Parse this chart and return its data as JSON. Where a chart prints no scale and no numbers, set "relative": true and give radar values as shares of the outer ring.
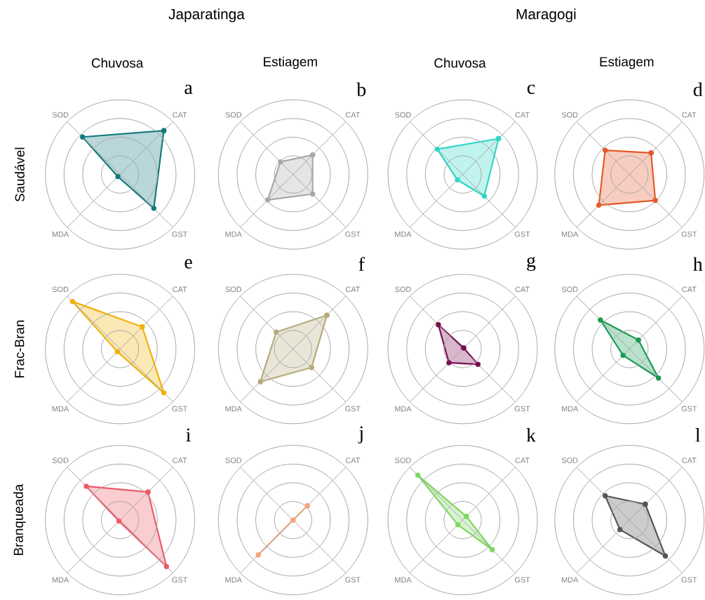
{
  "chart_data": [
    {
      "type": "radar",
      "title": "a",
      "subtitle": "Chuvosa",
      "ylabel": "Saudável",
      "annotations": [
        "Japaratinga"
      ],
      "categories": [
        "CAT",
        "GST",
        "MDA",
        "SOD"
      ],
      "relative": true,
      "marker": "circle",
      "series": [
        {
          "color": "#167a7e",
          "values": [
            0.83,
            0.64,
            0.04,
            0.71
          ]
        }
      ]
    },
    {
      "type": "radar",
      "title": "b",
      "subtitle": "Estiagem",
      "categories": [
        "CAT",
        "GST",
        "MDA",
        "SOD"
      ],
      "relative": true,
      "marker": "circle",
      "series": [
        {
          "color": "#a8a8a8",
          "values": [
            0.37,
            0.37,
            0.48,
            0.24
          ]
        }
      ]
    },
    {
      "type": "radar",
      "title": "c",
      "subtitle": "Chuvosa",
      "annotations": [
        "Maragogi"
      ],
      "categories": [
        "CAT",
        "GST",
        "MDA",
        "SOD"
      ],
      "relative": true,
      "marker": "circle",
      "series": [
        {
          "color": "#2fd6c6",
          "values": [
            0.68,
            0.41,
            0.1,
            0.48
          ]
        }
      ]
    },
    {
      "type": "radar",
      "title": "d",
      "subtitle": "Estiagem",
      "categories": [
        "CAT",
        "GST",
        "MDA",
        "SOD"
      ],
      "relative": true,
      "marker": "circle",
      "series": [
        {
          "color": "#e45a2a",
          "values": [
            0.41,
            0.49,
            0.58,
            0.46
          ]
        }
      ]
    },
    {
      "type": "radar",
      "title": "e",
      "ylabel": "Frac-Bran",
      "categories": [
        "CAT",
        "GST",
        "MDA",
        "SOD"
      ],
      "relative": true,
      "marker": "circle",
      "series": [
        {
          "color": "#f0b20a",
          "values": [
            0.42,
            0.83,
            0.05,
            0.9
          ]
        }
      ]
    },
    {
      "type": "radar",
      "title": "f",
      "categories": [
        "CAT",
        "GST",
        "MDA",
        "SOD"
      ],
      "relative": true,
      "marker": "circle",
      "series": [
        {
          "color": "#b5ab7b",
          "values": [
            0.64,
            0.35,
            0.62,
            0.32
          ]
        }
      ]
    },
    {
      "type": "radar",
      "title": "g",
      "categories": [
        "CAT",
        "GST",
        "MDA",
        "SOD"
      ],
      "relative": true,
      "marker": "circle",
      "series": [
        {
          "color": "#7a0f52",
          "values": [
            0.02,
            0.29,
            0.26,
            0.46
          ]
        }
      ]
    },
    {
      "type": "radar",
      "title": "h",
      "categories": [
        "CAT",
        "GST",
        "MDA",
        "SOD"
      ],
      "relative": true,
      "marker": "circle",
      "series": [
        {
          "color": "#1a9a52",
          "values": [
            0.17,
            0.55,
            0.12,
            0.55
          ]
        }
      ]
    },
    {
      "type": "radar",
      "title": "i",
      "ylabel": "Branqueada",
      "categories": [
        "CAT",
        "GST",
        "MDA",
        "SOD"
      ],
      "relative": true,
      "marker": "circle",
      "series": [
        {
          "color": "#ee5a66",
          "values": [
            0.53,
            0.88,
            0.02,
            0.64
          ]
        }
      ]
    },
    {
      "type": "radar",
      "title": "j",
      "categories": [
        "CAT",
        "GST",
        "MDA",
        "SOD"
      ],
      "relative": true,
      "marker": "circle",
      "series": [
        {
          "color": "#f5a57a",
          "values": [
            0.27,
            0,
            0.66,
            0
          ]
        }
      ]
    },
    {
      "type": "radar",
      "title": "k",
      "categories": [
        "CAT",
        "GST",
        "MDA",
        "SOD"
      ],
      "relative": true,
      "marker": "circle",
      "series": [
        {
          "color": "#7ed860",
          "values": [
            0.07,
            0.56,
            0.09,
            0.85
          ]
        }
      ]
    },
    {
      "type": "radar",
      "title": "l",
      "categories": [
        "CAT",
        "GST",
        "MDA",
        "SOD"
      ],
      "relative": true,
      "marker": "circle",
      "series": [
        {
          "color": "#555555",
          "values": [
            0.3,
            0.68,
            0.18,
            0.46
          ]
        }
      ]
    }
  ]
}
